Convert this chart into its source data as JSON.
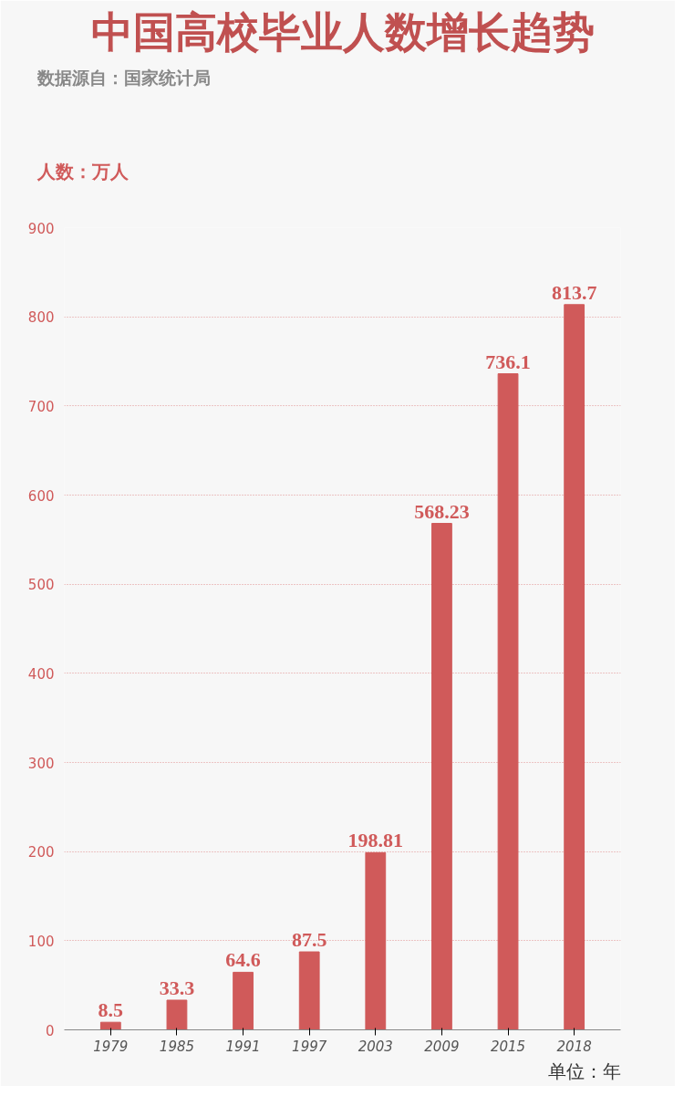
{
  "chart_data": {
    "type": "bar",
    "title": "中国高校毕业人数增长趋势",
    "annotations": [
      "数据源自：国家统计局"
    ],
    "ylabel": "人数：万人",
    "xlabel": "单位：年",
    "categories": [
      "1979",
      "1985",
      "1991",
      "1997",
      "2003",
      "2009",
      "2015",
      "2018"
    ],
    "values": [
      8.5,
      33.3,
      64.6,
      87.5,
      198.81,
      568.23,
      736.1,
      813.7
    ],
    "color": "#d05a5a",
    "ylim": [
      0,
      900
    ],
    "yticks": [
      0,
      100,
      200,
      300,
      400,
      500,
      600,
      700,
      800,
      900
    ],
    "grid": "y",
    "data_labels": true
  }
}
